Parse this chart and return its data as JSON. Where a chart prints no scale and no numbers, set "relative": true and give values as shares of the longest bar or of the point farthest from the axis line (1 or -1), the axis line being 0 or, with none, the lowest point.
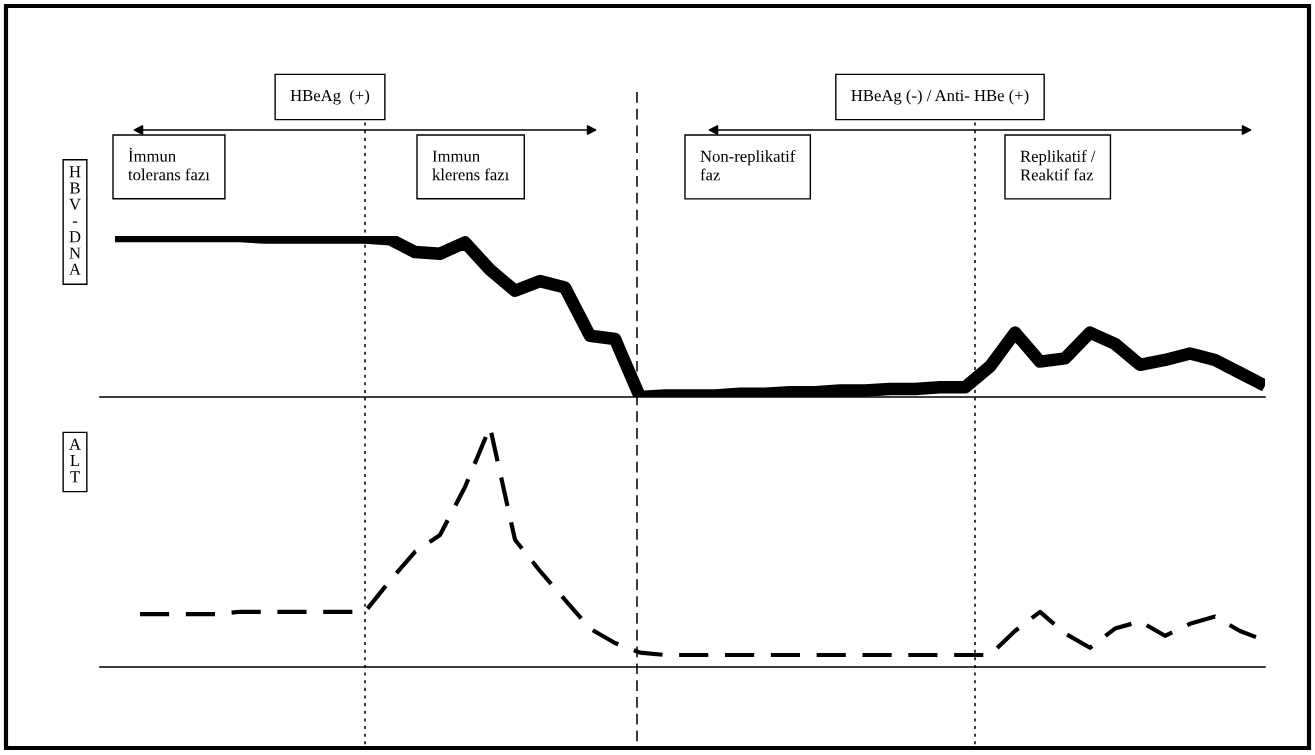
{
  "chart_data": [
    {
      "type": "line",
      "relative": true,
      "ylabel": "HBV-DNA",
      "categories": [
        null,
        null,
        null,
        null,
        null,
        null,
        null,
        null,
        null,
        null,
        null,
        null,
        null,
        null,
        null,
        null,
        null,
        null,
        null,
        null,
        null,
        null,
        null,
        null,
        null,
        null,
        null,
        null,
        null,
        null,
        null,
        null,
        null,
        null,
        null,
        null,
        null,
        null,
        null,
        null,
        null,
        null,
        null,
        null,
        null,
        null,
        null
      ],
      "series": [
        {
          "color": "#000000",
          "line_style": "solid",
          "values": [
            1,
            1,
            1,
            1,
            1,
            1,
            0.99,
            0.99,
            0.99,
            0.99,
            0.99,
            0.98,
            0.9,
            0.89,
            0.96,
            0.79,
            0.66,
            0.72,
            0.68,
            0.38,
            0.36,
            0,
            0.01,
            0.01,
            0.01,
            0.02,
            0.02,
            0.03,
            0.03,
            0.04,
            0.04,
            0.05,
            0.05,
            0.06,
            0.06,
            0.19,
            0.4,
            0.22,
            0.24,
            0.4,
            0.33,
            0.2,
            0.23,
            0.27,
            0.23,
            0.15,
            0.07
          ]
        }
      ],
      "annotations": [
        "HBeAg  (+)",
        "HBeAg (-) / Anti- HBe (+)",
        "İmmun\ntolerans fazı",
        "Immun\nklerens fazı",
        "Non-replikatif\nfaz",
        "Replikatif /\nReaktif faz"
      ]
    },
    {
      "type": "line",
      "relative": true,
      "ylabel": "ALT",
      "categories": [
        null,
        null,
        null,
        null,
        null,
        null,
        null,
        null,
        null,
        null,
        null,
        null,
        null,
        null,
        null,
        null,
        null,
        null,
        null,
        null,
        null,
        null,
        null,
        null,
        null,
        null,
        null,
        null,
        null,
        null,
        null,
        null,
        null,
        null,
        null,
        null,
        null,
        null,
        null,
        null,
        null,
        null,
        null,
        null,
        null,
        null,
        null
      ],
      "series": [
        {
          "color": "#000000",
          "line_style": "dashed",
          "values": [
            null,
            0.22,
            0.22,
            0.22,
            0.22,
            0.23,
            0.23,
            0.23,
            0.23,
            0.23,
            0.23,
            0.36,
            0.48,
            0.55,
            0.75,
            1,
            0.53,
            0.4,
            0.28,
            0.16,
            0.1,
            0.06,
            0.05,
            0.05,
            0.05,
            0.05,
            0.05,
            0.05,
            0.05,
            0.05,
            0.05,
            0.05,
            0.05,
            0.05,
            0.05,
            0.05,
            0.15,
            0.23,
            0.14,
            0.08,
            0.16,
            0.19,
            0.13,
            0.18,
            0.21,
            0.15,
            0.11
          ]
        }
      ]
    }
  ]
}
